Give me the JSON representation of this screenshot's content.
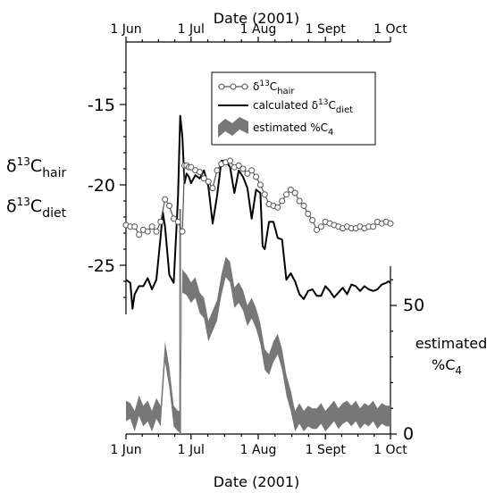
{
  "chart_data": {
    "type": "line",
    "xlabel": "Date (2001)",
    "x_ticks": [
      "1 Jun",
      "1 Jul",
      "1 Aug",
      "1 Sept",
      "1 Oct"
    ],
    "x_tick_days": [
      0,
      30,
      61,
      92,
      122
    ],
    "x_range_days": [
      0,
      122
    ],
    "left_axis": {
      "label_lines": [
        {
          "base": "δ",
          "sup": "13",
          "main": "C",
          "sub": "hair"
        },
        {
          "base": "δ",
          "sup": "13",
          "main": "C",
          "sub": "diet"
        }
      ],
      "ticks": [
        -15,
        -20,
        -25
      ],
      "tick_labels": [
        "-15",
        "-20",
        "-25"
      ],
      "ylim": [
        -27.5,
        -12
      ]
    },
    "right_axis": {
      "label_line1": "estimated",
      "label_line2_main": "%C",
      "label_line2_sub": "4",
      "ticks": [
        0,
        50
      ],
      "tick_labels": [
        "0",
        "50"
      ],
      "ylim": [
        0,
        78
      ]
    },
    "legend": [
      {
        "pre": "δ",
        "sup": "13",
        "main": "C",
        "sub": "hair",
        "style": "line-circles"
      },
      {
        "pre": "calculated δ",
        "sup": "13",
        "main": "C",
        "sub": "diet",
        "style": "line"
      },
      {
        "pre": "estimated %C",
        "sup": "",
        "main": "",
        "sub": "4",
        "style": "band"
      }
    ],
    "series": [
      {
        "key": "hair",
        "color": "#555555",
        "x": [
          0,
          2,
          4,
          6,
          8,
          10,
          12,
          14,
          16,
          18,
          20,
          22,
          24,
          26,
          27,
          28,
          29,
          30,
          32,
          34,
          36,
          38,
          40,
          42,
          44,
          46,
          48,
          50,
          52,
          54,
          56,
          58,
          60,
          62,
          64,
          66,
          68,
          70,
          72,
          74,
          76,
          78,
          80,
          82,
          84,
          86,
          88,
          90,
          92,
          94,
          96,
          98,
          100,
          102,
          104,
          106,
          108,
          110,
          112,
          114,
          116,
          118,
          120,
          122
        ],
        "values": [
          -22.5,
          -22.6,
          -22.6,
          -23.1,
          -22.8,
          -22.9,
          -22.6,
          -22.9,
          -22.3,
          -20.9,
          -21.3,
          -22.1,
          -22.3,
          -22.9,
          -18.8,
          -18.8,
          -18.9,
          -18.9,
          -19.1,
          -19.2,
          -19.6,
          -19.8,
          -20.2,
          -19.1,
          -18.7,
          -18.6,
          -18.5,
          -18.9,
          -18.8,
          -19.0,
          -19.3,
          -19.1,
          -19.5,
          -20.0,
          -20.6,
          -21.2,
          -21.3,
          -21.4,
          -21.0,
          -20.6,
          -20.3,
          -20.5,
          -21.0,
          -21.3,
          -21.8,
          -22.2,
          -22.8,
          -22.6,
          -22.3,
          -22.4,
          -22.5,
          -22.6,
          -22.7,
          -22.6,
          -22.7,
          -22.7,
          -22.6,
          -22.7,
          -22.6,
          -22.6,
          -22.3,
          -22.4,
          -22.3,
          -22.4
        ]
      },
      {
        "key": "diet",
        "color": "#000000",
        "x": [
          0,
          2,
          3,
          4,
          6,
          8,
          10,
          12,
          14,
          16,
          17,
          18,
          20,
          22,
          24,
          25,
          26,
          27,
          28,
          29,
          30,
          32,
          34,
          36,
          38,
          40,
          42,
          44,
          46,
          48,
          50,
          52,
          54,
          56,
          58,
          60,
          62,
          63,
          64,
          66,
          68,
          70,
          72,
          74,
          76,
          78,
          80,
          82,
          84,
          86,
          88,
          90,
          92,
          94,
          96,
          98,
          100,
          102,
          104,
          106,
          108,
          110,
          112,
          114,
          116,
          118,
          120,
          121,
          122
        ],
        "values": [
          -25.9,
          -26.1,
          -27.7,
          -26.8,
          -26.3,
          -26.3,
          -25.8,
          -26.5,
          -25.9,
          -23.2,
          -21.7,
          -22.6,
          -25.6,
          -26.1,
          -20.8,
          -15.7,
          -17.0,
          -19.9,
          -19.3,
          -19.5,
          -19.9,
          -19.4,
          -19.6,
          -19.1,
          -20.1,
          -22.4,
          -20.7,
          -18.5,
          -18.5,
          -18.9,
          -20.5,
          -19.1,
          -19.5,
          -20.2,
          -22.1,
          -20.3,
          -20.5,
          -23.8,
          -24.0,
          -22.3,
          -22.3,
          -23.3,
          -23.4,
          -25.9,
          -25.5,
          -26.0,
          -26.8,
          -27.1,
          -26.6,
          -26.5,
          -26.9,
          -26.9,
          -26.3,
          -26.6,
          -27.0,
          -26.7,
          -26.4,
          -26.8,
          -26.2,
          -26.3,
          -26.6,
          -26.3,
          -26.5,
          -26.6,
          -26.5,
          -26.2,
          -26.1,
          -26.0,
          -26.1
        ]
      },
      {
        "key": "c4",
        "color": "#777777",
        "x": [
          0,
          2,
          4,
          6,
          8,
          10,
          12,
          14,
          16,
          18,
          20,
          22,
          24,
          25,
          26,
          28,
          30,
          32,
          34,
          36,
          38,
          40,
          42,
          44,
          46,
          48,
          50,
          52,
          54,
          56,
          58,
          60,
          62,
          64,
          66,
          68,
          70,
          72,
          74,
          76,
          78,
          80,
          82,
          84,
          86,
          88,
          90,
          92,
          94,
          96,
          98,
          100,
          102,
          104,
          106,
          108,
          110,
          112,
          114,
          116,
          118,
          120,
          122
        ],
        "lower": [
          5,
          6,
          1,
          7,
          3,
          5,
          1,
          6,
          3,
          28,
          18,
          3,
          1,
          1,
          55,
          54,
          51,
          53,
          47,
          45,
          36,
          40,
          44,
          54,
          61,
          59,
          49,
          51,
          48,
          42,
          45,
          41,
          35,
          25,
          23,
          28,
          31,
          25,
          15,
          9,
          1,
          4,
          1,
          3,
          2,
          2,
          4,
          1,
          3,
          5,
          2,
          4,
          5,
          3,
          5,
          2,
          4,
          3,
          5,
          2,
          4,
          3,
          3
        ],
        "upper": [
          13,
          12,
          9,
          15,
          11,
          13,
          9,
          14,
          11,
          36,
          26,
          11,
          9,
          9,
          64,
          62,
          59,
          61,
          55,
          53,
          44,
          48,
          52,
          62,
          69,
          67,
          57,
          59,
          56,
          50,
          53,
          49,
          43,
          33,
          31,
          36,
          39,
          33,
          23,
          17,
          9,
          12,
          9,
          11,
          10,
          10,
          12,
          9,
          11,
          13,
          10,
          12,
          13,
          11,
          13,
          10,
          12,
          11,
          13,
          10,
          12,
          11,
          11
        ]
      }
    ],
    "c4_spike_day": 25
  }
}
